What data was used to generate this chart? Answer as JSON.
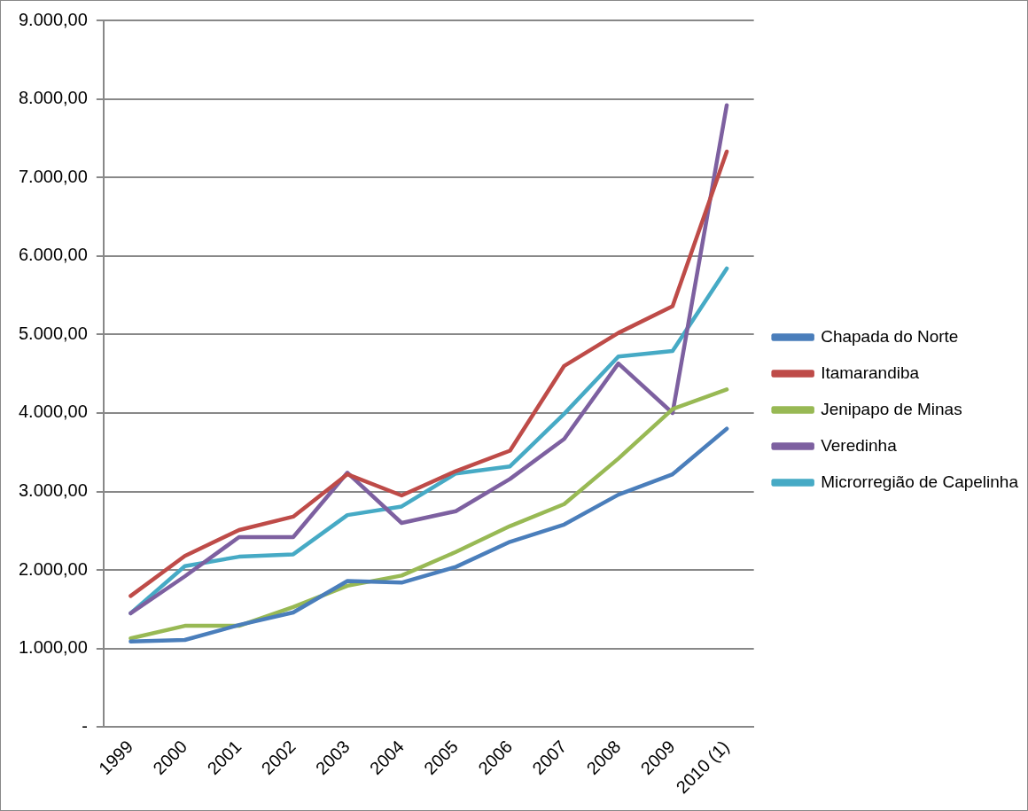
{
  "chart_data": {
    "type": "line",
    "categories": [
      "1999",
      "2000",
      "2001",
      "2002",
      "2003",
      "2004",
      "2005",
      "2006",
      "2007",
      "2008",
      "2009",
      "2010 (1)"
    ],
    "series": [
      {
        "name": "Chapada do Norte",
        "color": "#4a7ebb",
        "values": [
          1090,
          1110,
          1300,
          1460,
          1860,
          1840,
          2040,
          2360,
          2580,
          2960,
          3220,
          3800
        ]
      },
      {
        "name": "Itamarandiba",
        "color": "#be4b48",
        "values": [
          1670,
          2180,
          2510,
          2680,
          3220,
          2950,
          3260,
          3520,
          4600,
          5020,
          5360,
          7330
        ]
      },
      {
        "name": "Jenipapo de Minas",
        "color": "#98b954",
        "values": [
          1130,
          1290,
          1290,
          1530,
          1800,
          1930,
          2230,
          2560,
          2840,
          3420,
          4050,
          4300
        ]
      },
      {
        "name": "Veredinha",
        "color": "#7d60a0",
        "values": [
          1450,
          1920,
          2420,
          2420,
          3240,
          2600,
          2750,
          3160,
          3670,
          4630,
          4000,
          7920
        ]
      },
      {
        "name": "Microrregião de Capelinha",
        "color": "#46aac5",
        "values": [
          1450,
          2050,
          2170,
          2200,
          2700,
          2810,
          3230,
          3320,
          3990,
          4720,
          4790,
          5840
        ]
      }
    ],
    "ylim": [
      0,
      9000
    ],
    "yticks": [
      {
        "value": 0,
        "label": "-"
      },
      {
        "value": 1000,
        "label": "1.000,00"
      },
      {
        "value": 2000,
        "label": "2.000,00"
      },
      {
        "value": 3000,
        "label": "3.000,00"
      },
      {
        "value": 4000,
        "label": "4.000,00"
      },
      {
        "value": 5000,
        "label": "5.000,00"
      },
      {
        "value": 6000,
        "label": "6.000,00"
      },
      {
        "value": 7000,
        "label": "7.000,00"
      },
      {
        "value": 8000,
        "label": "8.000,00"
      },
      {
        "value": 9000,
        "label": "9.000,00"
      }
    ],
    "grid": "y",
    "legend": "right",
    "marker": "none",
    "line_style": "solid"
  }
}
